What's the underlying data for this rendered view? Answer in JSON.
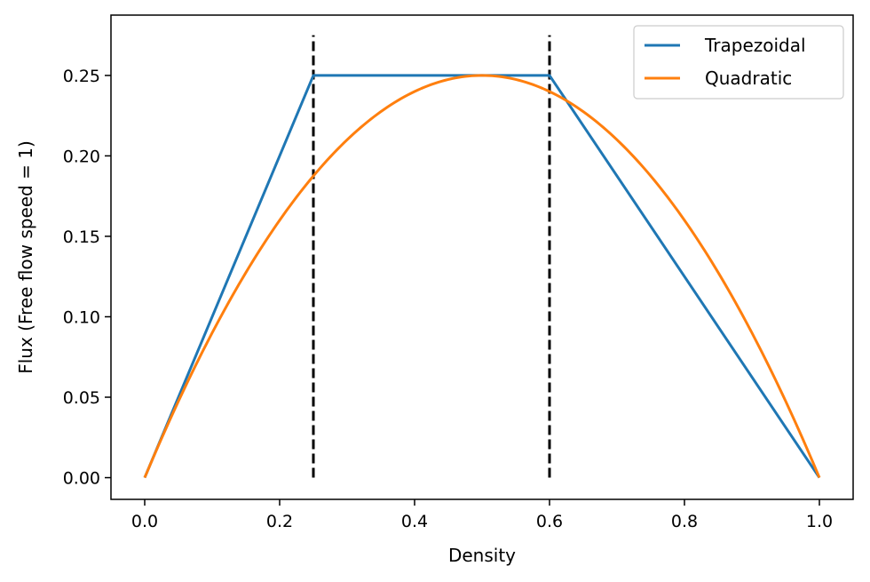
{
  "chart_data": {
    "type": "line",
    "title": "",
    "xlabel": "Density",
    "ylabel": "Flux (Free flow speed = 1)",
    "xlim": [
      -0.05,
      1.05
    ],
    "ylim": [
      -0.0135,
      0.2875
    ],
    "x_ticks": [
      0.0,
      0.2,
      0.4,
      0.6,
      0.8,
      1.0
    ],
    "x_tick_labels": [
      "0.0",
      "0.2",
      "0.4",
      "0.6",
      "0.8",
      "1.0"
    ],
    "y_ticks": [
      0.0,
      0.05,
      0.1,
      0.15,
      0.2,
      0.25
    ],
    "y_tick_labels": [
      "0.00",
      "0.05",
      "0.10",
      "0.15",
      "0.20",
      "0.25"
    ],
    "grid": false,
    "legend_position": "top-right",
    "series": [
      {
        "name": "Trapezoidal",
        "color": "#1f77b4",
        "x": [
          0.0,
          0.25,
          0.6,
          1.0
        ],
        "y": [
          0.0,
          0.25,
          0.25,
          0.0
        ]
      },
      {
        "name": "Quadratic",
        "color": "#ff7f0e",
        "formula": "y = x * (1 - x)",
        "x_range": [
          0.0,
          1.0
        ]
      }
    ],
    "vertical_lines": [
      {
        "x": 0.25,
        "y_range": [
          0.0,
          0.275
        ],
        "style": "dashed",
        "color": "#000000"
      },
      {
        "x": 0.6,
        "y_range": [
          0.0,
          0.275
        ],
        "style": "dashed",
        "color": "#000000"
      }
    ]
  }
}
